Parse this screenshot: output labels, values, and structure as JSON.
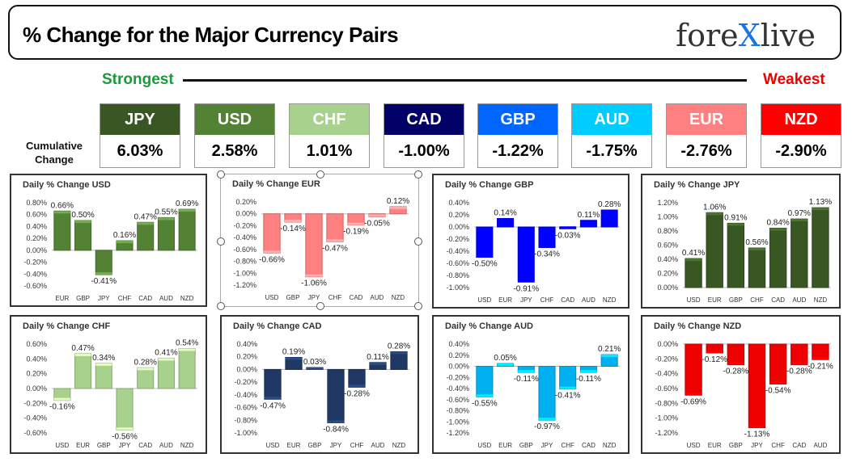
{
  "header": {
    "title": "% Change for the Major Currency Pairs",
    "logo_part1": "fore",
    "logo_part2": "X",
    "logo_part3": "live"
  },
  "ranking": {
    "strongest_label": "Strongest",
    "weakest_label": "Weakest",
    "cumulative_label_line1": "Cumulative",
    "cumulative_label_line2": "Change",
    "currencies": [
      {
        "code": "JPY",
        "value": "6.03%",
        "color": "#385723"
      },
      {
        "code": "USD",
        "value": "2.58%",
        "color": "#548235"
      },
      {
        "code": "CHF",
        "value": "1.01%",
        "color": "#a9d18e"
      },
      {
        "code": "CAD",
        "value": "-1.00%",
        "color": "#000066"
      },
      {
        "code": "GBP",
        "value": "-1.22%",
        "color": "#0066ff"
      },
      {
        "code": "AUD",
        "value": "-1.75%",
        "color": "#00ccff"
      },
      {
        "code": "EUR",
        "value": "-2.76%",
        "color": "#ff8080"
      },
      {
        "code": "NZD",
        "value": "-2.90%",
        "color": "#ff0000"
      }
    ]
  },
  "chart_data": [
    {
      "type": "bar",
      "title": "Daily % Change USD",
      "color": "#548235",
      "categories": [
        "EUR",
        "GBP",
        "JPY",
        "CHF",
        "CAD",
        "AUD",
        "NZD"
      ],
      "values": [
        0.66,
        0.5,
        -0.41,
        0.16,
        0.47,
        0.55,
        0.69
      ],
      "labels": [
        "0.66%",
        "0.50%",
        "-0.41%",
        "0.16%",
        "0.47%",
        "0.55%",
        "0.69%"
      ],
      "ylim": [
        -0.6,
        0.8
      ],
      "ticks": [
        0.8,
        0.6,
        0.4,
        0.2,
        0.0,
        -0.2,
        -0.4,
        -0.6
      ],
      "tick_labels": [
        "0.80%",
        "0.60%",
        "0.40%",
        "0.20%",
        "0.00%",
        "-0.20%",
        "-0.40%",
        "-0.60%"
      ]
    },
    {
      "type": "bar",
      "title": "Daily % Change EUR",
      "color": "#ff8080",
      "categories": [
        "USD",
        "GBP",
        "JPY",
        "CHF",
        "CAD",
        "AUD",
        "NZD"
      ],
      "values": [
        -0.66,
        -0.14,
        -1.06,
        -0.47,
        -0.19,
        -0.05,
        0.12
      ],
      "labels": [
        "-0.66%",
        "-0.14%",
        "-1.06%",
        "-0.47%",
        "-0.19%",
        "-0.05%",
        "0.12%"
      ],
      "ylim": [
        -1.2,
        0.2
      ],
      "ticks": [
        0.2,
        0.0,
        -0.2,
        -0.4,
        -0.6,
        -0.8,
        -1.0,
        -1.2
      ],
      "tick_labels": [
        "0.20%",
        "0.00%",
        "-0.20%",
        "-0.40%",
        "-0.60%",
        "-0.80%",
        "-1.00%",
        "-1.20%"
      ]
    },
    {
      "type": "bar",
      "title": "Daily % Change GBP",
      "color": "#0000ff",
      "categories": [
        "USD",
        "EUR",
        "JPY",
        "CHF",
        "CAD",
        "AUD",
        "NZD"
      ],
      "values": [
        -0.5,
        0.14,
        -0.91,
        -0.34,
        -0.03,
        0.11,
        0.28
      ],
      "labels": [
        "-0.50%",
        "0.14%",
        "-0.91%",
        "-0.34%",
        "-0.03%",
        "0.11%",
        "0.28%"
      ],
      "ylim": [
        -1.0,
        0.4
      ],
      "ticks": [
        0.4,
        0.2,
        0.0,
        -0.2,
        -0.4,
        -0.6,
        -0.8,
        -1.0
      ],
      "tick_labels": [
        "0.40%",
        "0.20%",
        "0.00%",
        "-0.20%",
        "-0.40%",
        "-0.60%",
        "-0.80%",
        "-1.00%"
      ]
    },
    {
      "type": "bar",
      "title": "Daily % Change JPY",
      "color": "#385723",
      "categories": [
        "USD",
        "EUR",
        "GBP",
        "CHF",
        "CAD",
        "AUD",
        "NZD"
      ],
      "values": [
        0.41,
        1.06,
        0.91,
        0.56,
        0.84,
        0.97,
        1.13
      ],
      "labels": [
        "0.41%",
        "1.06%",
        "0.91%",
        "0.56%",
        "0.84%",
        "0.97%",
        "1.13%"
      ],
      "ylim": [
        0,
        1.2
      ],
      "ticks": [
        1.2,
        1.0,
        0.8,
        0.6,
        0.4,
        0.2,
        0.0
      ],
      "tick_labels": [
        "1.20%",
        "1.00%",
        "0.80%",
        "0.60%",
        "0.40%",
        "0.20%",
        "0.00%"
      ]
    },
    {
      "type": "bar",
      "title": "Daily % Change CHF",
      "color": "#a9d18e",
      "categories": [
        "USD",
        "EUR",
        "GBP",
        "JPY",
        "CAD",
        "AUD",
        "NZD"
      ],
      "values": [
        -0.16,
        0.47,
        0.34,
        -0.56,
        0.28,
        0.41,
        0.54
      ],
      "labels": [
        "-0.16%",
        "0.47%",
        "0.34%",
        "-0.56%",
        "0.28%",
        "0.41%",
        "0.54%"
      ],
      "ylim": [
        -0.6,
        0.6
      ],
      "ticks": [
        0.6,
        0.4,
        0.2,
        0.0,
        -0.2,
        -0.4,
        -0.6
      ],
      "tick_labels": [
        "0.60%",
        "0.40%",
        "0.20%",
        "0.00%",
        "-0.20%",
        "-0.40%",
        "-0.60%"
      ]
    },
    {
      "type": "bar",
      "title": "Daily % Change CAD",
      "color": "#1f3864",
      "categories": [
        "USD",
        "EUR",
        "GBP",
        "JPY",
        "CHF",
        "AUD",
        "NZD"
      ],
      "values": [
        -0.47,
        0.19,
        0.03,
        -0.84,
        -0.28,
        0.11,
        0.28
      ],
      "labels": [
        "-0.47%",
        "0.19%",
        "0.03%",
        "-0.84%",
        "-0.28%",
        "0.11%",
        "0.28%"
      ],
      "ylim": [
        -1.0,
        0.4
      ],
      "ticks": [
        0.4,
        0.2,
        0.0,
        -0.2,
        -0.4,
        -0.6,
        -0.8,
        -1.0
      ],
      "tick_labels": [
        "0.40%",
        "0.20%",
        "0.00%",
        "-0.20%",
        "-0.40%",
        "-0.60%",
        "-0.80%",
        "-1.00%"
      ]
    },
    {
      "type": "bar",
      "title": "Daily % Change AUD",
      "color": "#00b0f0",
      "categories": [
        "USD",
        "EUR",
        "GBP",
        "JPY",
        "CHF",
        "CAD",
        "NZD"
      ],
      "values": [
        -0.55,
        0.05,
        -0.11,
        -0.97,
        -0.41,
        -0.11,
        0.21
      ],
      "labels": [
        "-0.55%",
        "0.05%",
        "-0.11%",
        "-0.97%",
        "-0.41%",
        "-0.11%",
        "0.21%"
      ],
      "ylim": [
        -1.2,
        0.4
      ],
      "ticks": [
        0.4,
        0.2,
        0.0,
        -0.2,
        -0.4,
        -0.6,
        -0.8,
        -1.0,
        -1.2
      ],
      "tick_labels": [
        "0.40%",
        "0.20%",
        "0.00%",
        "-0.20%",
        "-0.40%",
        "-0.60%",
        "-0.80%",
        "-1.00%",
        "-1.20%"
      ]
    },
    {
      "type": "bar",
      "title": "Daily % Change NZD",
      "color": "#ee0000",
      "categories": [
        "USD",
        "EUR",
        "GBP",
        "JPY",
        "CHF",
        "CAD",
        "AUD"
      ],
      "values": [
        -0.69,
        -0.12,
        -0.28,
        -1.13,
        -0.54,
        -0.28,
        -0.21
      ],
      "labels": [
        "-0.69%",
        "-0.12%",
        "-0.28%",
        "-1.13%",
        "-0.54%",
        "-0.28%",
        "-0.21%"
      ],
      "ylim": [
        -1.2,
        0.0
      ],
      "ticks": [
        0.0,
        -0.2,
        -0.4,
        -0.6,
        -0.8,
        -1.0,
        -1.2
      ],
      "tick_labels": [
        "0.00%",
        "-0.20%",
        "-0.40%",
        "-0.60%",
        "-0.80%",
        "-1.00%",
        "-1.20%"
      ]
    }
  ]
}
